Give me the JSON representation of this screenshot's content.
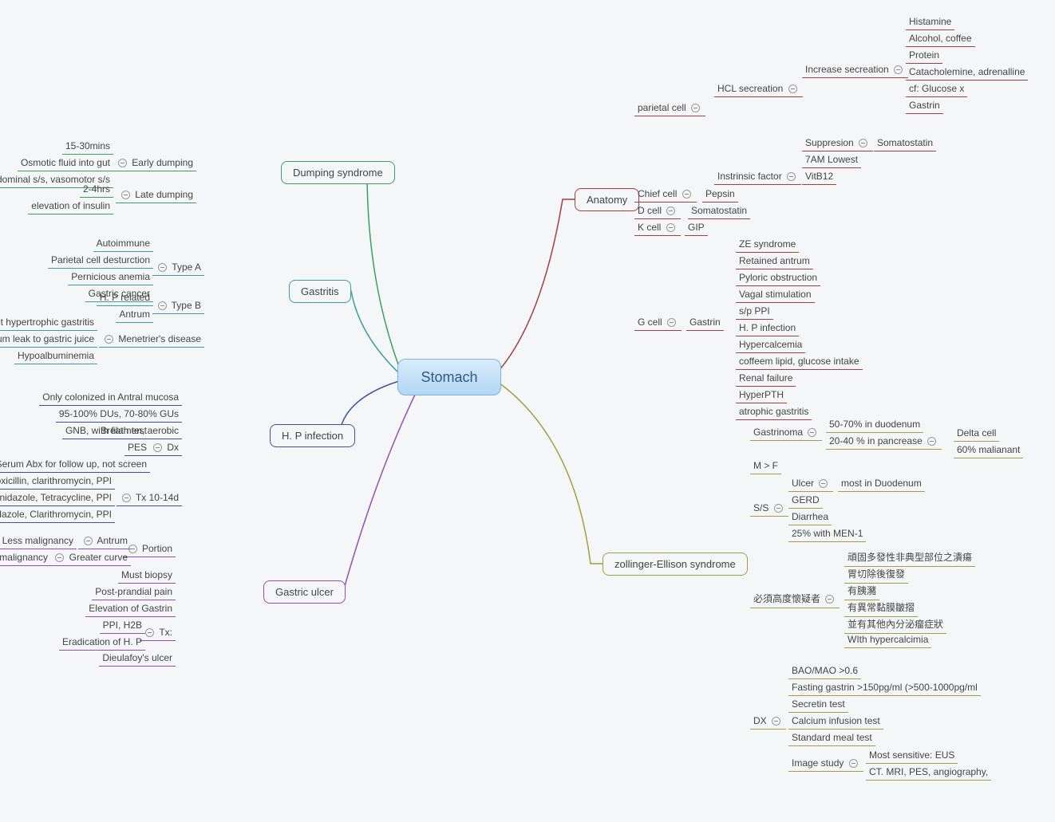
{
  "center": "Stomach",
  "colors": {
    "anatomy": "#a04040",
    "ze": "#a0a040",
    "dump": "#3aa060",
    "gast": "#3aa0a0",
    "hp": "#4050a0",
    "gu": "#9050b0"
  },
  "boxes": {
    "anatomy": "Anatomy",
    "ze": "zollinger-Ellison syndrome",
    "dump": "Dumping syndrome",
    "gast": "Gastritis",
    "hp": "H. P infection",
    "gu": "Gastric ulcer"
  },
  "anat": {
    "parietal": "parietal cell",
    "hcl": "HCL secreation",
    "incsec": "Increase secreation",
    "incsec_items": [
      "Histamine",
      "Alcohol, coffee",
      "Protein",
      "Catacholemine, adrenalline",
      "cf: Glucose x",
      "Gastrin"
    ],
    "supp": "Suppresion",
    "somato": "Somatostatin",
    "am": "7AM Lowest",
    "intr": "Instrinsic factor",
    "vitb12": "VitB12",
    "chief": "Chief cell",
    "pepsin": "Pepsin",
    "dcell": "D cell",
    "dcell_v": "Somatostatin",
    "kcell": "K cell",
    "gip": "GIP",
    "gcell": "G cell",
    "gcell_g": "Gastrin",
    "gcell_items": [
      "ZE syndrome",
      "Retained antrum",
      "Pyloric obstruction",
      "Vagal stimulation",
      "s/p PPI",
      "H. P infection",
      "Hypercalcemia",
      "coffeem lipid, glucose intake",
      "Renal failure",
      "HyperPTH",
      "atrophic gastritis"
    ]
  },
  "ze_d": {
    "gastr": "Gastrinoma",
    "g1": "50-70% in duodenum",
    "g2": "20-40 % in pancrease",
    "g2a": "Delta cell",
    "g2b": "60% malianant",
    "mf": "M > F",
    "ss": "S/S",
    "ulcer": "Ulcer",
    "ulcer_v": "most in Duodenum",
    "gerd": "GERD",
    "diar": "Diarrhea",
    "men": "25% with MEN-1",
    "susp": "必須高度懷疑者",
    "susp_items": [
      "頑固多發性非典型部位之潰瘍",
      "胃切除後復發",
      "有胰瀦",
      "有異常黏膜皺摺",
      "並有其他內分泌瘤症狀",
      "WIth hypercalcimia"
    ],
    "dx": "DX",
    "dx_items": [
      "BAO/MAO >0.6",
      "Fasting gastrin >150pg/ml (>500-1000pg/ml",
      "Secretin test",
      "Calcium infusion test",
      "Standard meal test"
    ],
    "img": "Image study",
    "img1": "Most sensitive: EUS",
    "img2": "CT. MRI, PES, angiography,"
  },
  "dump_d": {
    "early": "Early dumping",
    "early_items": [
      "15-30mins",
      "Osmotic  fluid into gut",
      "Abdominal s/s, vasomotor s/s"
    ],
    "late": "Late dumping",
    "late_items": [
      "2-4hrs",
      "elevation of insulin"
    ]
  },
  "gast_d": {
    "ta": "Type A",
    "ta_items": [
      "Autoimmune",
      "Parietal cell desturction",
      "Pernicious anemia",
      "Gastric cancer"
    ],
    "tb": "Type B",
    "tb_items": [
      "H. P related",
      "Antrum"
    ],
    "men": "Menetrier's disease",
    "men_items": [
      "Giant hypertrophic gastritis",
      "Serum album leak to gastric juice",
      "Hypoalbuminemia"
    ]
  },
  "hp_d": {
    "top": [
      "Only colonized in Antral mucosa",
      "95-100% DUs, 70-80% GUs",
      "GNB, with filamen, aerobic"
    ],
    "dx": "Dx",
    "dx_items": [
      "Breath test",
      "PES",
      "Serum Abx for follow up, not screen"
    ],
    "tx": "Tx 10-14d",
    "tx_items": [
      "Amoxicillin, clarithromycin, PPI",
      "Bismuth, Metronidazole, Tetracycline, PPI",
      "Metronidazole, Clarithromycin, PPI"
    ]
  },
  "gu_d": {
    "portion": "Portion",
    "antrum": "Antrum",
    "antrum_v": "Less malignancy",
    "curve": "Greater curve",
    "curve_v": "More malignancy",
    "mid": [
      "Must biopsy",
      "Post-prandial pain",
      "Elevation of Gastrin"
    ],
    "tx": "Tx:",
    "tx_items": [
      "PPI, H2B",
      "Eradication of H. P"
    ],
    "last": "Dieulafoy's ulcer"
  }
}
